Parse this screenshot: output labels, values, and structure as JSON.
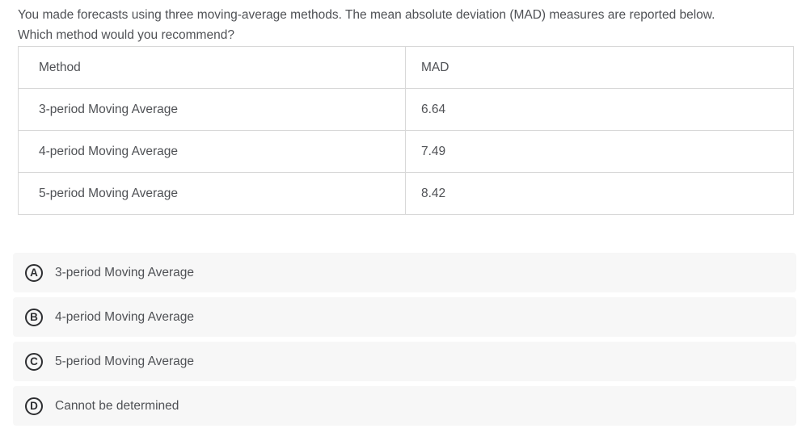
{
  "question": {
    "line1": "You made forecasts using three moving-average methods. The mean absolute deviation (MAD) measures are reported below.",
    "line2": "Which method would you recommend?"
  },
  "table": {
    "headers": {
      "method": "Method",
      "mad": "MAD"
    },
    "rows": [
      {
        "method": "3-period Moving Average",
        "mad": "6.64"
      },
      {
        "method": "4-period Moving Average",
        "mad": "7.49"
      },
      {
        "method": "5-period Moving Average",
        "mad": "8.42"
      }
    ]
  },
  "options": [
    {
      "letter": "A",
      "label": "3-period Moving Average"
    },
    {
      "letter": "B",
      "label": "4-period Moving Average"
    },
    {
      "letter": "C",
      "label": "5-period Moving Average"
    },
    {
      "letter": "D",
      "label": "Cannot be determined"
    }
  ],
  "colors": {
    "text": "#4f5155",
    "table_border": "#d8d8d8",
    "option_background": "#f7f7f7",
    "badge": "#2e2f32"
  }
}
